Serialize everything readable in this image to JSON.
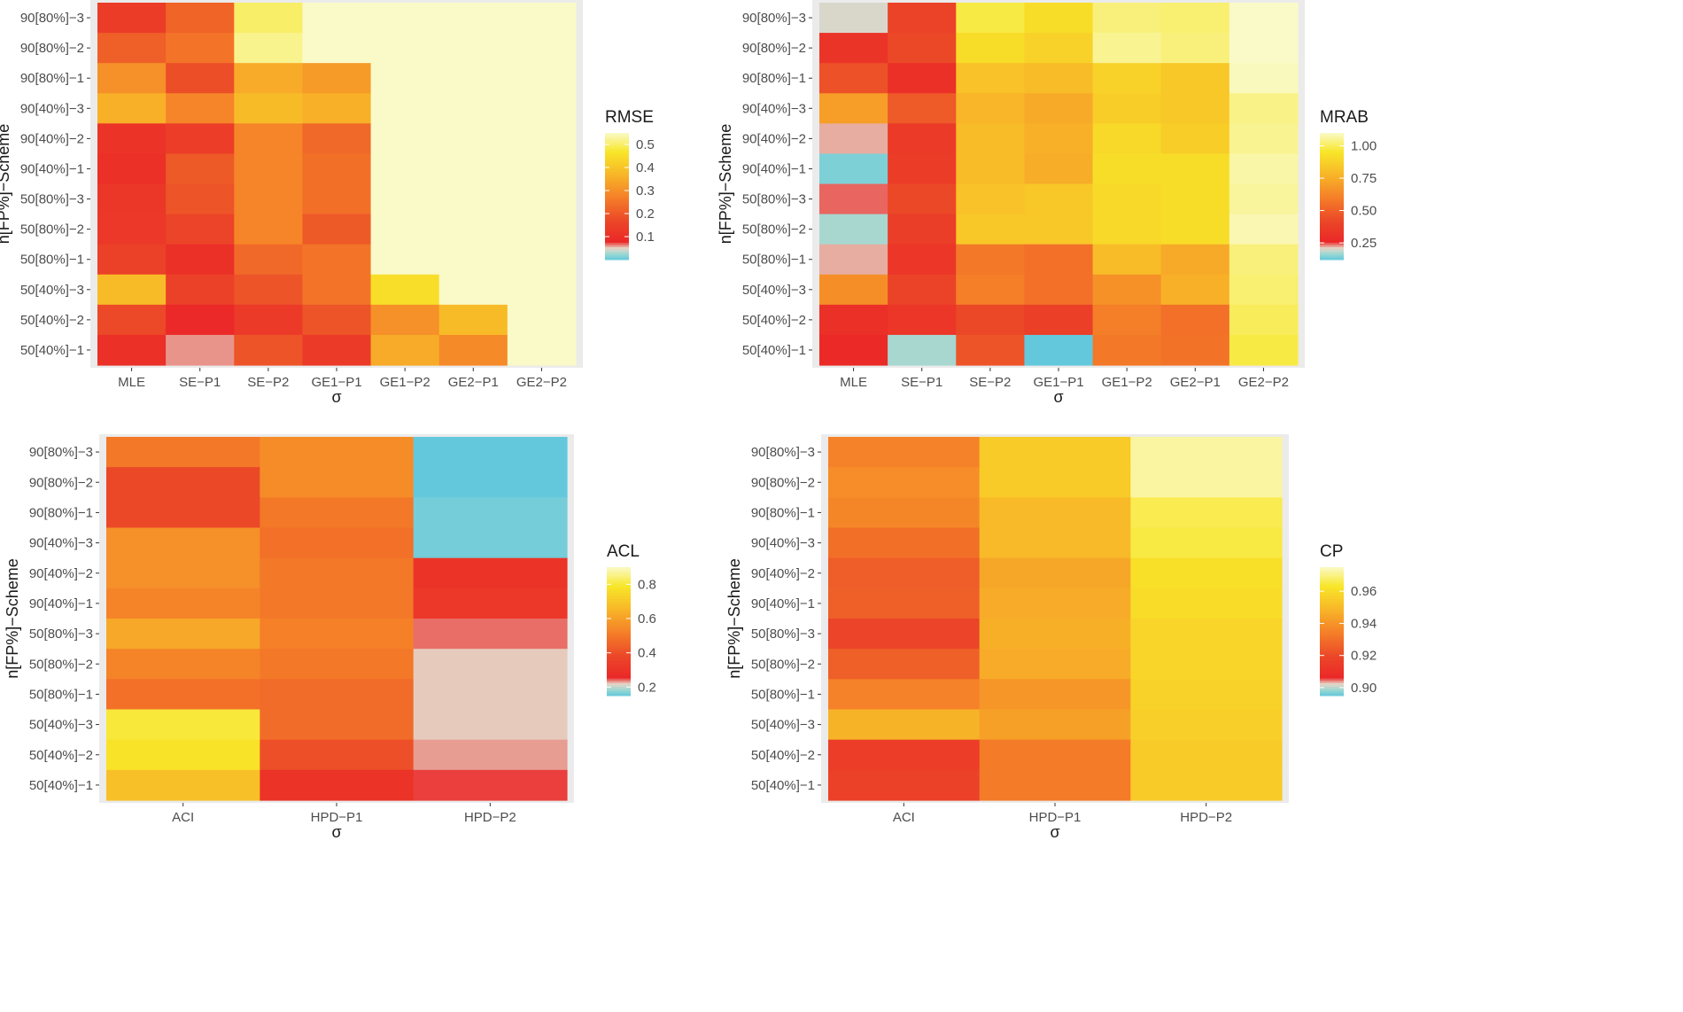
{
  "chart_data": [
    {
      "type": "heatmap",
      "legend_title": "RMSE",
      "xlabel": "σ",
      "ylabel": "n[FP%]−Scheme",
      "x_categories": [
        "MLE",
        "SE−P1",
        "SE−P2",
        "GE1−P1",
        "GE1−P2",
        "GE2−P1",
        "GE2−P2"
      ],
      "y_categories": [
        "90[80%]−3",
        "90[80%]−2",
        "90[80%]−1",
        "90[40%]−3",
        "90[40%]−2",
        "90[40%]−1",
        "50[80%]−3",
        "50[80%]−2",
        "50[80%]−1",
        "50[40%]−3",
        "50[40%]−2",
        "50[40%]−1"
      ],
      "values": [
        [
          0.136,
          0.22,
          0.5,
          0.62,
          0.88,
          0.9,
          0.97
        ],
        [
          0.21,
          0.25,
          0.52,
          0.55,
          0.9,
          0.88,
          0.96
        ],
        [
          0.3,
          0.18,
          0.35,
          0.32,
          0.75,
          0.77,
          0.97
        ],
        [
          0.36,
          0.28,
          0.38,
          0.36,
          0.78,
          0.84,
          0.93
        ],
        [
          0.11,
          0.14,
          0.28,
          0.23,
          0.74,
          0.7,
          0.87
        ],
        [
          0.1,
          0.2,
          0.28,
          0.24,
          0.73,
          0.73,
          0.9
        ],
        [
          0.12,
          0.19,
          0.28,
          0.24,
          0.72,
          0.72,
          0.93
        ],
        [
          0.125,
          0.16,
          0.28,
          0.2,
          0.72,
          0.72,
          0.92
        ],
        [
          0.15,
          0.1,
          0.23,
          0.25,
          0.55,
          0.58,
          0.86
        ],
        [
          0.38,
          0.15,
          0.19,
          0.25,
          0.45,
          0.55,
          0.84
        ],
        [
          0.17,
          0.08,
          0.13,
          0.19,
          0.3,
          0.38,
          0.78
        ],
        [
          0.1,
          0.06,
          0.19,
          0.13,
          0.35,
          0.29,
          0.75
        ]
      ],
      "scale_domain": [
        0.0,
        0.55
      ],
      "legend_ticks": [
        0.1,
        0.2,
        0.3,
        0.4,
        0.5
      ],
      "legend_tick_labels": [
        "0.1",
        "0.2",
        "0.3",
        "0.4",
        "0.5"
      ]
    },
    {
      "type": "heatmap",
      "legend_title": "MRAB",
      "xlabel": "σ",
      "ylabel": "n[FP%]−Scheme",
      "x_categories": [
        "MLE",
        "SE−P1",
        "SE−P2",
        "GE1−P1",
        "GE1−P2",
        "GE2−P1",
        "GE2−P2"
      ],
      "y_categories": [
        "90[80%]−3",
        "90[80%]−2",
        "90[80%]−1",
        "90[40%]−3",
        "90[40%]−2",
        "90[40%]−1",
        "50[80%]−3",
        "50[80%]−2",
        "50[80%]−1",
        "50[40%]−3",
        "50[40%]−2",
        "50[40%]−1"
      ],
      "values": [
        [
          0.2,
          0.4,
          0.98,
          0.92,
          1.03,
          1.02,
          1.1
        ],
        [
          0.32,
          0.42,
          0.92,
          0.88,
          1.05,
          1.03,
          1.1
        ],
        [
          0.45,
          0.3,
          0.82,
          0.8,
          0.88,
          0.84,
          1.09
        ],
        [
          0.7,
          0.48,
          0.78,
          0.74,
          0.86,
          0.84,
          1.04
        ],
        [
          0.22,
          0.35,
          0.8,
          0.76,
          0.9,
          0.86,
          1.05
        ],
        [
          0.14,
          0.36,
          0.8,
          0.75,
          0.92,
          0.92,
          1.07
        ],
        [
          0.24,
          0.42,
          0.82,
          0.84,
          0.9,
          0.92,
          1.06
        ],
        [
          0.17,
          0.37,
          0.84,
          0.84,
          0.9,
          0.92,
          1.08
        ],
        [
          0.22,
          0.33,
          0.58,
          0.55,
          0.8,
          0.74,
          1.03
        ],
        [
          0.65,
          0.4,
          0.6,
          0.55,
          0.66,
          0.76,
          1.02
        ],
        [
          0.3,
          0.33,
          0.42,
          0.38,
          0.6,
          0.55,
          1.0
        ],
        [
          0.27,
          0.17,
          0.46,
          0.1,
          0.58,
          0.56,
          0.98
        ]
      ],
      "scale_domain": [
        0.12,
        1.1
      ],
      "legend_ticks": [
        0.25,
        0.5,
        0.75,
        1.0
      ],
      "legend_tick_labels": [
        "0.25",
        "0.50",
        "0.75",
        "1.00"
      ]
    },
    {
      "type": "heatmap",
      "legend_title": "ACL",
      "xlabel": "σ",
      "ylabel": "n[FP%]−Scheme",
      "x_categories": [
        "ACI",
        "HPD−P1",
        "HPD−P2"
      ],
      "y_categories": [
        "90[80%]−3",
        "90[80%]−2",
        "90[80%]−1",
        "90[40%]−3",
        "90[40%]−2",
        "90[40%]−1",
        "50[80%]−3",
        "50[80%]−2",
        "50[80%]−1",
        "50[40%]−3",
        "50[40%]−2",
        "50[40%]−1"
      ],
      "values": [
        [
          0.5,
          0.55,
          0.1
        ],
        [
          0.38,
          0.55,
          0.1
        ],
        [
          0.38,
          0.5,
          0.16
        ],
        [
          0.56,
          0.48,
          0.16
        ],
        [
          0.56,
          0.5,
          0.3
        ],
        [
          0.53,
          0.5,
          0.32
        ],
        [
          0.62,
          0.52,
          0.24
        ],
        [
          0.53,
          0.5,
          0.22
        ],
        [
          0.48,
          0.47,
          0.22
        ],
        [
          0.8,
          0.47,
          0.22
        ],
        [
          0.78,
          0.4,
          0.23
        ],
        [
          0.68,
          0.3,
          0.25
        ]
      ],
      "scale_domain": [
        0.15,
        0.9
      ],
      "legend_ticks": [
        0.2,
        0.4,
        0.6,
        0.8
      ],
      "legend_tick_labels": [
        "0.2",
        "0.4",
        "0.6",
        "0.8"
      ]
    },
    {
      "type": "heatmap",
      "legend_title": "CP",
      "xlabel": "σ",
      "ylabel": "n[FP%]−Scheme",
      "x_categories": [
        "ACI",
        "HPD−P1",
        "HPD−P2"
      ],
      "y_categories": [
        "90[80%]−3",
        "90[80%]−2",
        "90[80%]−1",
        "90[40%]−3",
        "90[40%]−2",
        "90[40%]−1",
        "50[80%]−3",
        "50[80%]−2",
        "50[80%]−1",
        "50[40%]−3",
        "50[40%]−2",
        "50[40%]−1"
      ],
      "values": [
        [
          0.935,
          0.955,
          0.972
        ],
        [
          0.938,
          0.955,
          0.972
        ],
        [
          0.936,
          0.95,
          0.966
        ],
        [
          0.93,
          0.95,
          0.965
        ],
        [
          0.925,
          0.945,
          0.961
        ],
        [
          0.926,
          0.946,
          0.96
        ],
        [
          0.918,
          0.947,
          0.958
        ],
        [
          0.926,
          0.946,
          0.958
        ],
        [
          0.935,
          0.94,
          0.957
        ],
        [
          0.948,
          0.943,
          0.956
        ],
        [
          0.915,
          0.933,
          0.955
        ],
        [
          0.917,
          0.933,
          0.955
        ]
      ],
      "scale_domain": [
        0.895,
        0.975
      ],
      "legend_ticks": [
        0.9,
        0.92,
        0.94,
        0.96
      ],
      "legend_tick_labels": [
        "0.90",
        "0.92",
        "0.94",
        "0.96"
      ]
    }
  ]
}
